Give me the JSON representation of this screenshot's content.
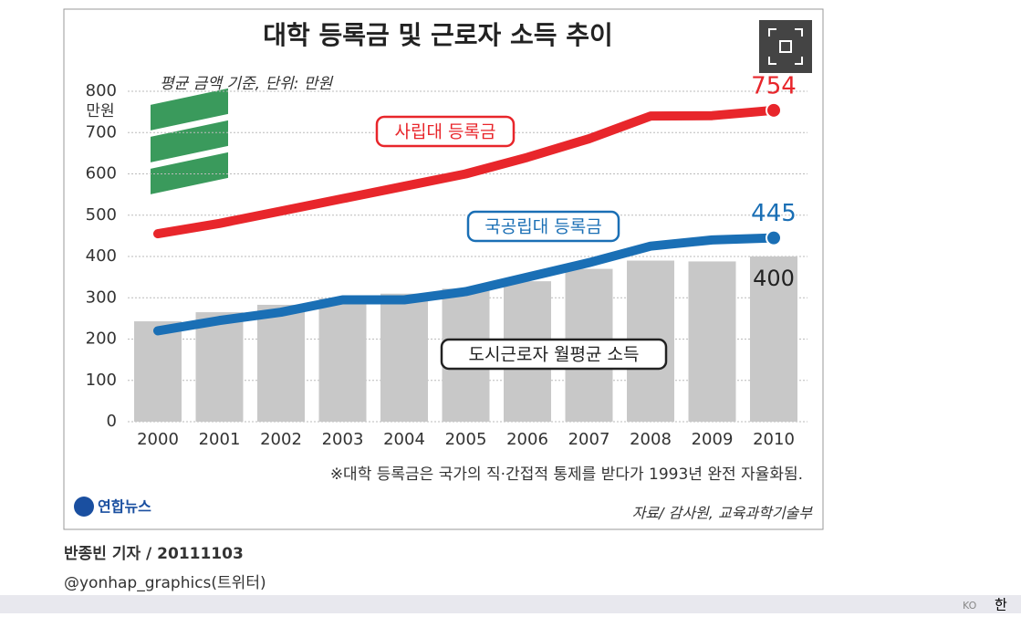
{
  "chart_data": {
    "type": "bar",
    "title": "대학 등록금 및 근로자 소득 추이",
    "subtitle": "평균 금액 기준, 단위: 만원",
    "y_unit": "만원",
    "categories": [
      "2000",
      "2001",
      "2002",
      "2003",
      "2004",
      "2005",
      "2006",
      "2007",
      "2008",
      "2009",
      "2010"
    ],
    "series": [
      {
        "name": "사립대 등록금",
        "type": "line",
        "color": "#e8262b",
        "values": [
          455,
          480,
          510,
          540,
          570,
          600,
          640,
          685,
          740,
          741,
          754
        ]
      },
      {
        "name": "국공립대 등록금",
        "type": "line",
        "color": "#1a6fb5",
        "values": [
          220,
          245,
          265,
          295,
          295,
          315,
          350,
          385,
          425,
          440,
          445
        ]
      },
      {
        "name": "도시근로자 월평균 소득",
        "type": "bar",
        "color": "#c8c8c8",
        "values": [
          243,
          265,
          283,
          298,
          310,
          322,
          340,
          370,
          390,
          388,
          400
        ]
      }
    ],
    "ylim": [
      0,
      800
    ],
    "yticks": [
      0,
      100,
      200,
      300,
      400,
      500,
      600,
      700,
      800
    ],
    "grid": true,
    "footnote": "※대학 등록금은 국가의 직·간접적 통제를 받다가 1993년 완전 자율화됨.",
    "source": "자료/ 감사원, 교육과학기술부",
    "logo": "연합뉴스"
  },
  "byline": "반종빈 기자 / 20111103",
  "twitter": "@yonhap_graphics(트위터)",
  "taskbar": {
    "lang": "KO",
    "ime": "한"
  }
}
